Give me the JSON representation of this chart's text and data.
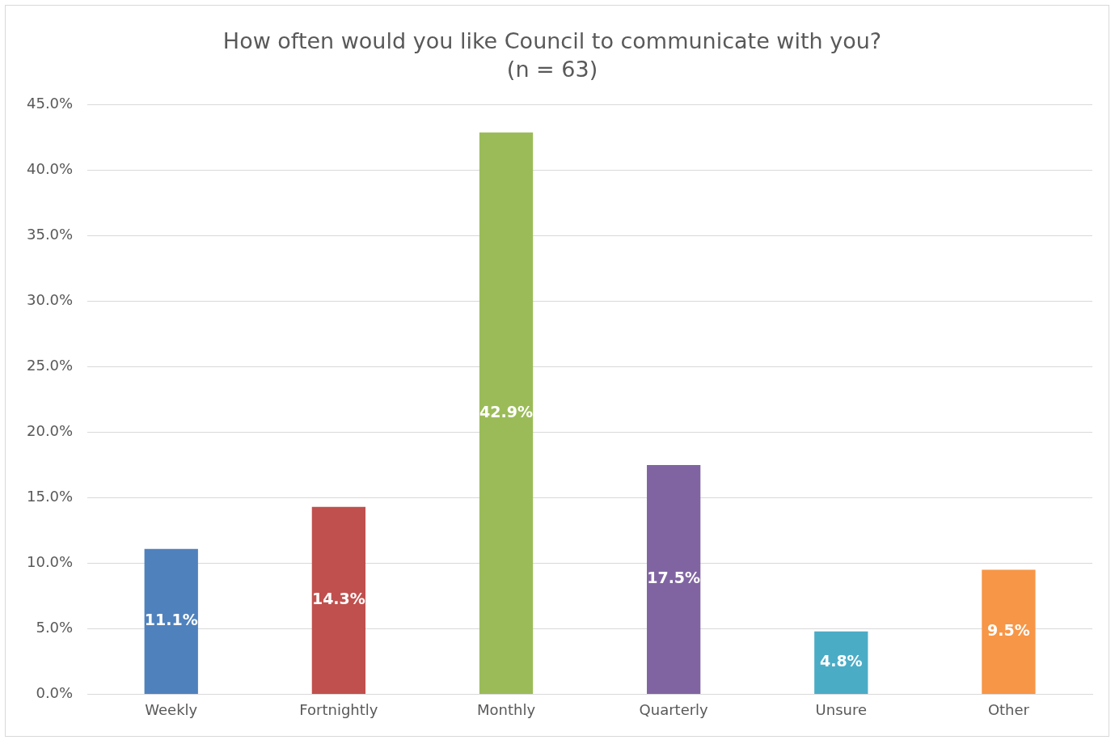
{
  "chart_data": {
    "type": "bar",
    "title": "How often would you like Council to communicate with you?",
    "subtitle": "(n = 63)",
    "categories": [
      "Weekly",
      "Fortnightly",
      "Monthly",
      "Quarterly",
      "Unsure",
      "Other"
    ],
    "values": [
      11.1,
      14.3,
      42.9,
      17.5,
      4.8,
      9.5
    ],
    "colors": [
      "#4f81bd",
      "#c0504d",
      "#9bbb59",
      "#8064a2",
      "#4bacc6",
      "#f79646"
    ],
    "value_labels": [
      "11.1%",
      "14.3%",
      "42.9%",
      "17.5%",
      "4.8%",
      "9.5%"
    ],
    "ylim": [
      0,
      45
    ],
    "yticks": [
      {
        "value": 0,
        "label": "0.0%"
      },
      {
        "value": 5,
        "label": "5.0%"
      },
      {
        "value": 10,
        "label": "10.0%"
      },
      {
        "value": 15,
        "label": "15.0%"
      },
      {
        "value": 20,
        "label": "20.0%"
      },
      {
        "value": 25,
        "label": "25.0%"
      },
      {
        "value": 30,
        "label": "30.0%"
      },
      {
        "value": 35,
        "label": "35.0%"
      },
      {
        "value": 40,
        "label": "40.0%"
      },
      {
        "value": 45,
        "label": "45.0%"
      }
    ],
    "grid": "y",
    "legend": false
  }
}
